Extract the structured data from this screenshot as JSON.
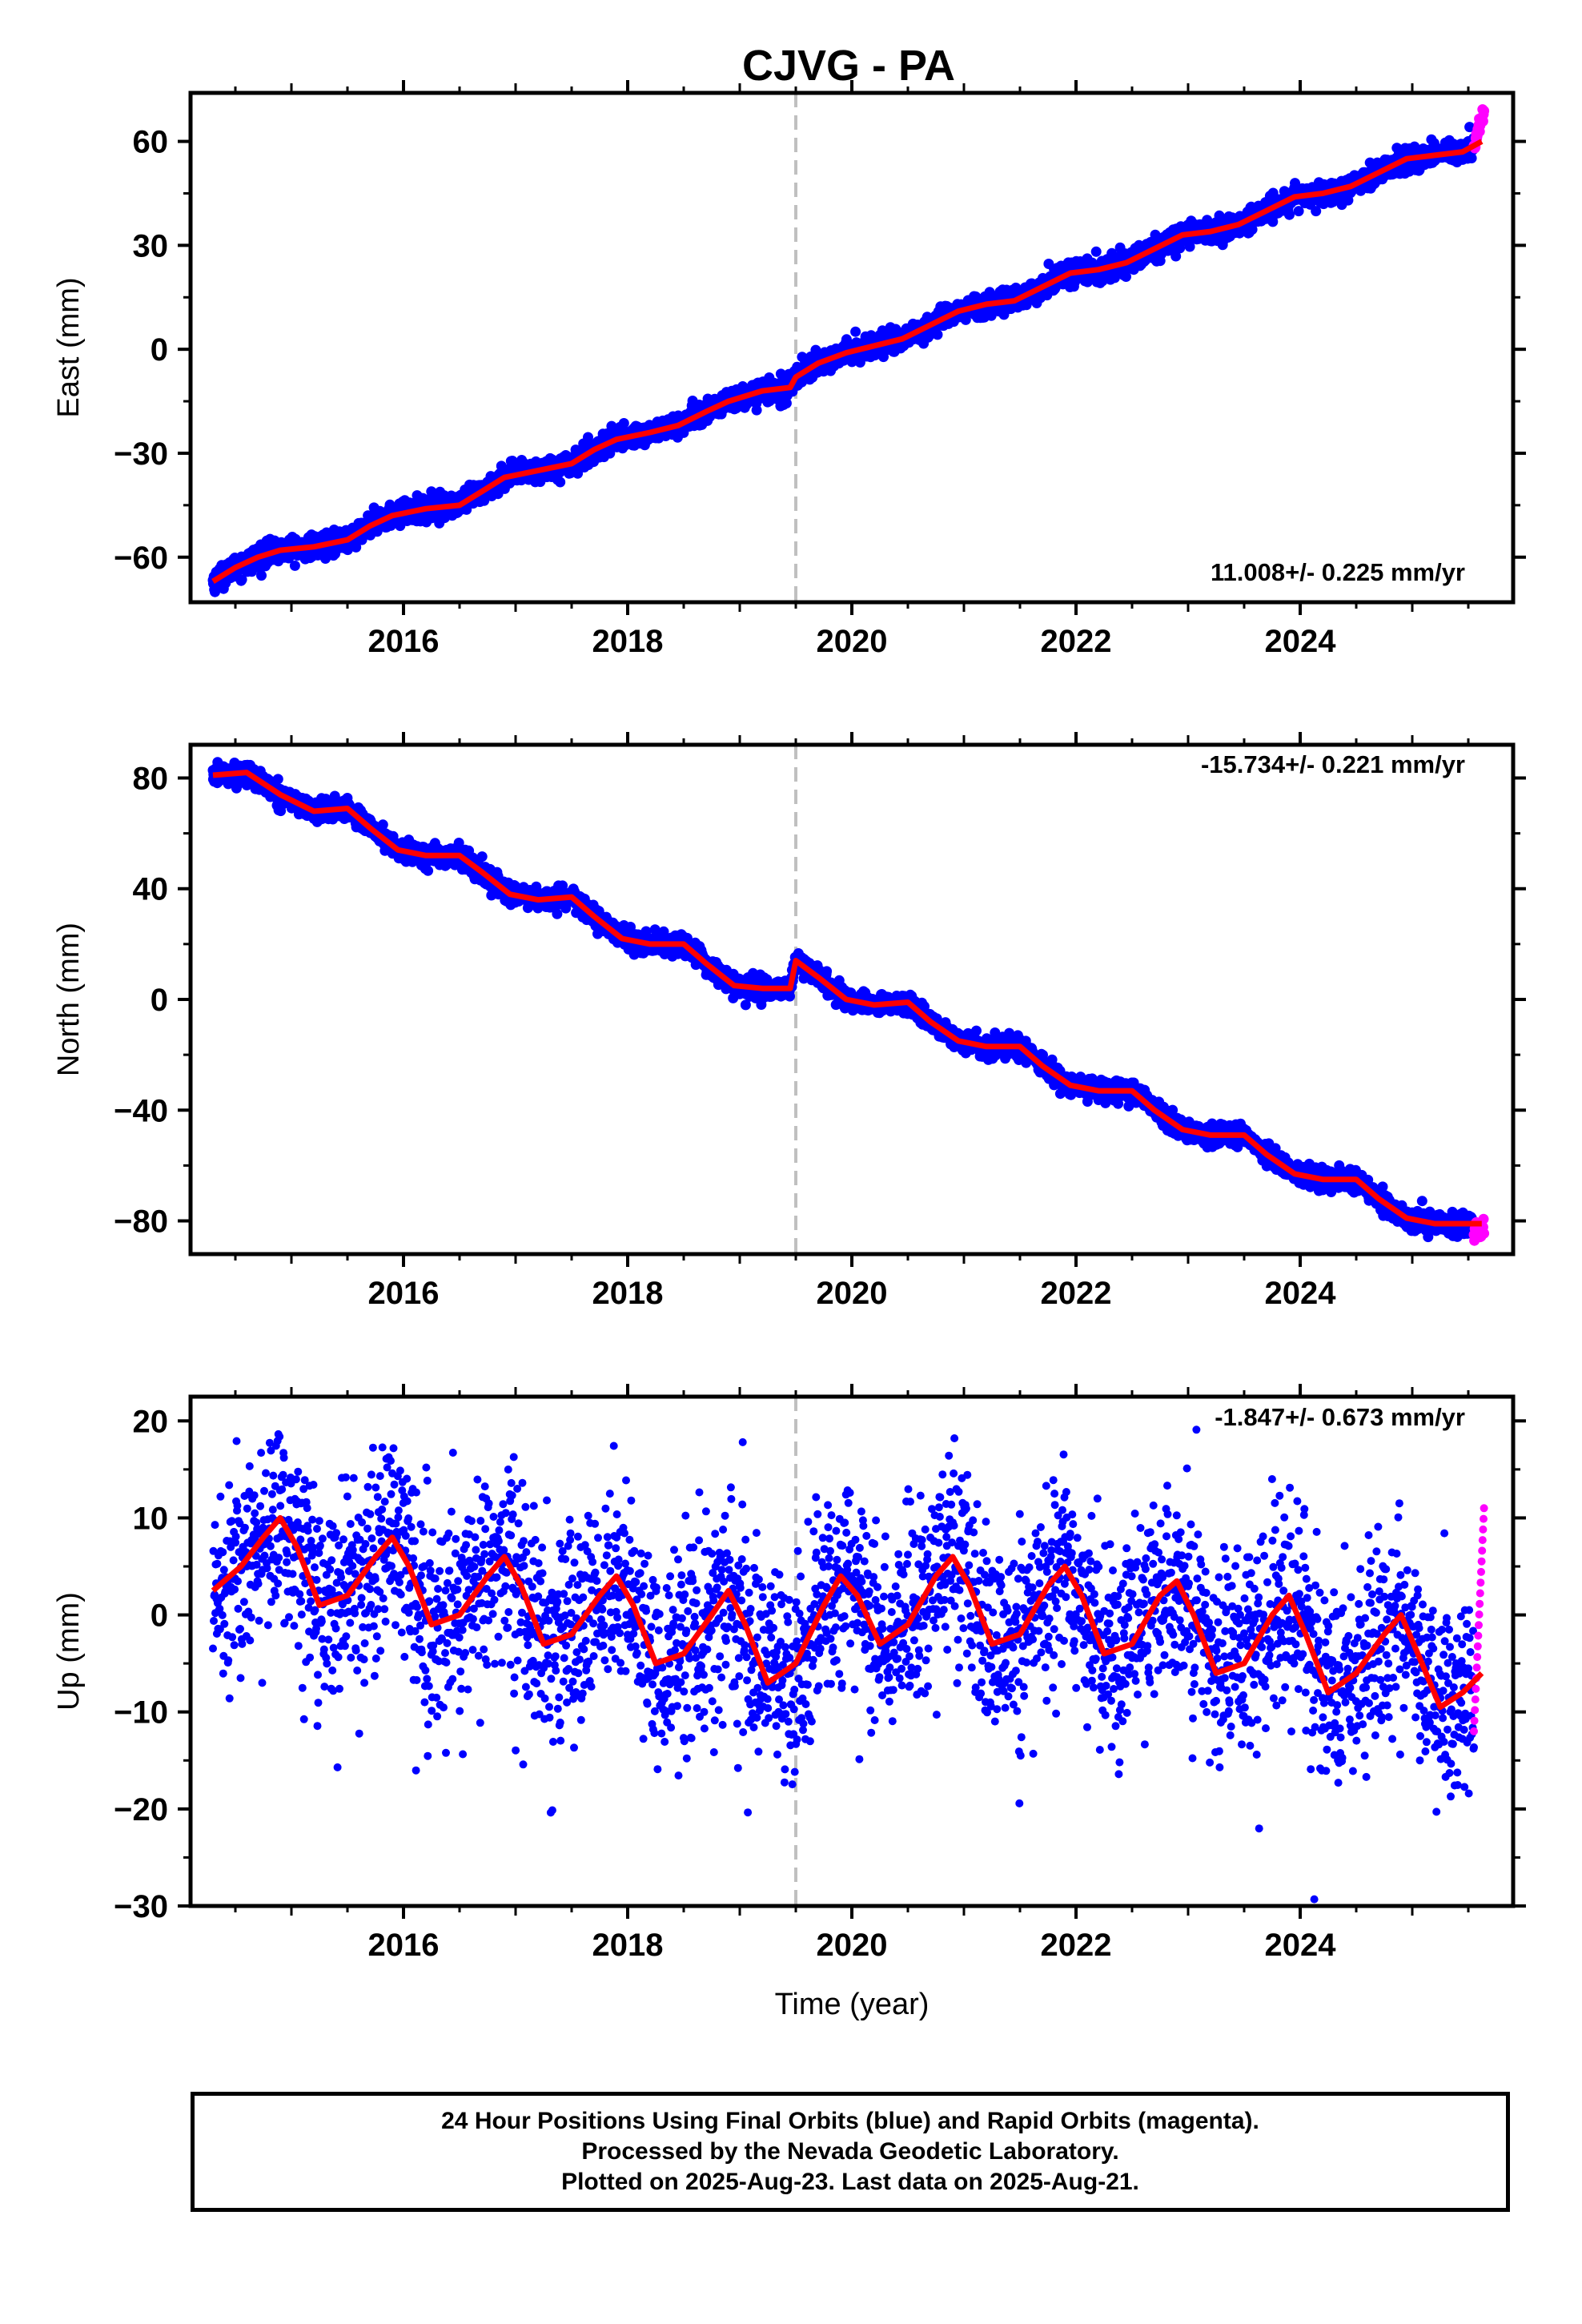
{
  "title": "CJVG - PA",
  "colors": {
    "final_orbits": "#0000ff",
    "rapid_orbits": "#ff00ff",
    "model": "#ff0000",
    "event_line": "#c0c0c0"
  },
  "footer": {
    "line1": "24 Hour Positions Using Final Orbits (blue) and Rapid Orbits (magenta).",
    "line2": "Processed by the Nevada Geodetic Laboratory.",
    "line3": "Plotted on 2025-Aug-23. Last data on 2025-Aug-21."
  },
  "chart_data": [
    {
      "type": "scatter",
      "component": "east",
      "ylabel": "East (mm)",
      "xlabel": "",
      "rate": "11.008+/- 0.225 mm/yr",
      "xlim": [
        2014.1,
        2025.9
      ],
      "ylim": [
        -73,
        74
      ],
      "yticks": [
        -60,
        -30,
        0,
        30,
        60
      ],
      "xticks": [
        2016,
        2018,
        2020,
        2022,
        2024
      ],
      "event_x": 2019.5,
      "final_range": [
        2014.3,
        2025.55
      ],
      "rapid_range": [
        2025.55,
        2025.64
      ],
      "model": [
        {
          "x": 2014.3,
          "y": -67
        },
        {
          "x": 2014.5,
          "y": -63
        },
        {
          "x": 2014.7,
          "y": -60
        },
        {
          "x": 2014.9,
          "y": -58
        },
        {
          "x": 2015.2,
          "y": -57
        },
        {
          "x": 2015.5,
          "y": -55
        },
        {
          "x": 2015.7,
          "y": -51
        },
        {
          "x": 2015.9,
          "y": -48
        },
        {
          "x": 2016.2,
          "y": -46
        },
        {
          "x": 2016.5,
          "y": -45
        },
        {
          "x": 2016.7,
          "y": -41
        },
        {
          "x": 2016.9,
          "y": -37
        },
        {
          "x": 2017.2,
          "y": -35
        },
        {
          "x": 2017.5,
          "y": -33
        },
        {
          "x": 2017.7,
          "y": -29
        },
        {
          "x": 2017.9,
          "y": -26
        },
        {
          "x": 2018.2,
          "y": -24
        },
        {
          "x": 2018.45,
          "y": -22
        },
        {
          "x": 2018.7,
          "y": -18
        },
        {
          "x": 2018.9,
          "y": -15
        },
        {
          "x": 2019.2,
          "y": -12
        },
        {
          "x": 2019.45,
          "y": -11
        },
        {
          "x": 2019.5,
          "y": -8
        },
        {
          "x": 2019.7,
          "y": -4
        },
        {
          "x": 2019.95,
          "y": -1
        },
        {
          "x": 2020.2,
          "y": 1
        },
        {
          "x": 2020.45,
          "y": 3
        },
        {
          "x": 2020.7,
          "y": 7
        },
        {
          "x": 2020.95,
          "y": 11
        },
        {
          "x": 2021.2,
          "y": 13
        },
        {
          "x": 2021.45,
          "y": 14
        },
        {
          "x": 2021.7,
          "y": 18
        },
        {
          "x": 2021.95,
          "y": 22
        },
        {
          "x": 2022.2,
          "y": 23
        },
        {
          "x": 2022.45,
          "y": 25
        },
        {
          "x": 2022.7,
          "y": 29
        },
        {
          "x": 2022.95,
          "y": 33
        },
        {
          "x": 2023.2,
          "y": 34
        },
        {
          "x": 2023.45,
          "y": 36
        },
        {
          "x": 2023.7,
          "y": 40
        },
        {
          "x": 2023.95,
          "y": 44
        },
        {
          "x": 2024.2,
          "y": 45
        },
        {
          "x": 2024.45,
          "y": 47
        },
        {
          "x": 2024.7,
          "y": 51
        },
        {
          "x": 2024.95,
          "y": 55
        },
        {
          "x": 2025.2,
          "y": 56
        },
        {
          "x": 2025.45,
          "y": 57
        },
        {
          "x": 2025.62,
          "y": 60
        }
      ]
    },
    {
      "type": "scatter",
      "component": "north",
      "ylabel": "North (mm)",
      "xlabel": "",
      "rate": "-15.734+/- 0.221 mm/yr",
      "xlim": [
        2014.1,
        2025.9
      ],
      "ylim": [
        -92,
        92
      ],
      "yticks": [
        -80,
        -40,
        0,
        40,
        80
      ],
      "xticks": [
        2016,
        2018,
        2020,
        2022,
        2024
      ],
      "event_x": 2019.5,
      "final_range": [
        2014.3,
        2025.55
      ],
      "rapid_range": [
        2025.55,
        2025.64
      ],
      "model": [
        {
          "x": 2014.3,
          "y": 81
        },
        {
          "x": 2014.6,
          "y": 82
        },
        {
          "x": 2014.9,
          "y": 74
        },
        {
          "x": 2015.2,
          "y": 68
        },
        {
          "x": 2015.5,
          "y": 69
        },
        {
          "x": 2015.7,
          "y": 62
        },
        {
          "x": 2015.95,
          "y": 54
        },
        {
          "x": 2016.2,
          "y": 52
        },
        {
          "x": 2016.5,
          "y": 52
        },
        {
          "x": 2016.7,
          "y": 46
        },
        {
          "x": 2016.95,
          "y": 38
        },
        {
          "x": 2017.2,
          "y": 36
        },
        {
          "x": 2017.5,
          "y": 37
        },
        {
          "x": 2017.7,
          "y": 30
        },
        {
          "x": 2017.95,
          "y": 22
        },
        {
          "x": 2018.2,
          "y": 20
        },
        {
          "x": 2018.5,
          "y": 20
        },
        {
          "x": 2018.7,
          "y": 13
        },
        {
          "x": 2018.95,
          "y": 5
        },
        {
          "x": 2019.2,
          "y": 4
        },
        {
          "x": 2019.45,
          "y": 4
        },
        {
          "x": 2019.5,
          "y": 14
        },
        {
          "x": 2019.7,
          "y": 8
        },
        {
          "x": 2019.95,
          "y": 0
        },
        {
          "x": 2020.2,
          "y": -2
        },
        {
          "x": 2020.5,
          "y": -1
        },
        {
          "x": 2020.7,
          "y": -8
        },
        {
          "x": 2020.95,
          "y": -15
        },
        {
          "x": 2021.2,
          "y": -17
        },
        {
          "x": 2021.5,
          "y": -17
        },
        {
          "x": 2021.7,
          "y": -24
        },
        {
          "x": 2021.95,
          "y": -31
        },
        {
          "x": 2022.2,
          "y": -33
        },
        {
          "x": 2022.5,
          "y": -33
        },
        {
          "x": 2022.7,
          "y": -40
        },
        {
          "x": 2022.95,
          "y": -47
        },
        {
          "x": 2023.2,
          "y": -49
        },
        {
          "x": 2023.5,
          "y": -49
        },
        {
          "x": 2023.7,
          "y": -56
        },
        {
          "x": 2023.95,
          "y": -63
        },
        {
          "x": 2024.2,
          "y": -65
        },
        {
          "x": 2024.5,
          "y": -65
        },
        {
          "x": 2024.7,
          "y": -72
        },
        {
          "x": 2024.95,
          "y": -79
        },
        {
          "x": 2025.2,
          "y": -81
        },
        {
          "x": 2025.62,
          "y": -81
        }
      ]
    },
    {
      "type": "scatter",
      "component": "up",
      "ylabel": "Up (mm)",
      "xlabel": "Time (year)",
      "rate": "-1.847+/- 0.673 mm/yr",
      "xlim": [
        2014.1,
        2025.9
      ],
      "ylim": [
        -30,
        22.5
      ],
      "yticks": [
        -30,
        -20,
        -10,
        0,
        10,
        20
      ],
      "xticks": [
        2016,
        2018,
        2020,
        2022,
        2024
      ],
      "event_x": 2019.5,
      "final_range": [
        2014.3,
        2025.55
      ],
      "rapid_range": [
        2025.55,
        2025.64
      ],
      "model": [
        {
          "x": 2014.3,
          "y": 2.5
        },
        {
          "x": 2014.55,
          "y": 5
        },
        {
          "x": 2014.75,
          "y": 8
        },
        {
          "x": 2014.9,
          "y": 10
        },
        {
          "x": 2015.05,
          "y": 7
        },
        {
          "x": 2015.25,
          "y": 1
        },
        {
          "x": 2015.5,
          "y": 2
        },
        {
          "x": 2015.75,
          "y": 6
        },
        {
          "x": 2015.9,
          "y": 8
        },
        {
          "x": 2016.05,
          "y": 5
        },
        {
          "x": 2016.25,
          "y": -1
        },
        {
          "x": 2016.5,
          "y": 0
        },
        {
          "x": 2016.75,
          "y": 4
        },
        {
          "x": 2016.9,
          "y": 6
        },
        {
          "x": 2017.05,
          "y": 3
        },
        {
          "x": 2017.25,
          "y": -3
        },
        {
          "x": 2017.5,
          "y": -2
        },
        {
          "x": 2017.75,
          "y": 2
        },
        {
          "x": 2017.9,
          "y": 4
        },
        {
          "x": 2018.05,
          "y": 1
        },
        {
          "x": 2018.25,
          "y": -5
        },
        {
          "x": 2018.5,
          "y": -4
        },
        {
          "x": 2018.75,
          "y": 0
        },
        {
          "x": 2018.9,
          "y": 2.5
        },
        {
          "x": 2019.05,
          "y": -1
        },
        {
          "x": 2019.25,
          "y": -7
        },
        {
          "x": 2019.5,
          "y": -5
        },
        {
          "x": 2019.75,
          "y": 1
        },
        {
          "x": 2019.9,
          "y": 4
        },
        {
          "x": 2020.05,
          "y": 2
        },
        {
          "x": 2020.25,
          "y": -3
        },
        {
          "x": 2020.5,
          "y": -1
        },
        {
          "x": 2020.75,
          "y": 4
        },
        {
          "x": 2020.9,
          "y": 6
        },
        {
          "x": 2021.05,
          "y": 3
        },
        {
          "x": 2021.25,
          "y": -3
        },
        {
          "x": 2021.5,
          "y": -2
        },
        {
          "x": 2021.75,
          "y": 3
        },
        {
          "x": 2021.9,
          "y": 5
        },
        {
          "x": 2022.05,
          "y": 2
        },
        {
          "x": 2022.25,
          "y": -4
        },
        {
          "x": 2022.5,
          "y": -3
        },
        {
          "x": 2022.75,
          "y": 2
        },
        {
          "x": 2022.9,
          "y": 3.5
        },
        {
          "x": 2023.05,
          "y": 0
        },
        {
          "x": 2023.25,
          "y": -6
        },
        {
          "x": 2023.5,
          "y": -5
        },
        {
          "x": 2023.75,
          "y": 0
        },
        {
          "x": 2023.9,
          "y": 2
        },
        {
          "x": 2024.05,
          "y": -2
        },
        {
          "x": 2024.25,
          "y": -8
        },
        {
          "x": 2024.5,
          "y": -6
        },
        {
          "x": 2024.75,
          "y": -2
        },
        {
          "x": 2024.9,
          "y": 0
        },
        {
          "x": 2025.05,
          "y": -4
        },
        {
          "x": 2025.25,
          "y": -9.5
        },
        {
          "x": 2025.45,
          "y": -8
        },
        {
          "x": 2025.62,
          "y": -6
        }
      ]
    }
  ]
}
